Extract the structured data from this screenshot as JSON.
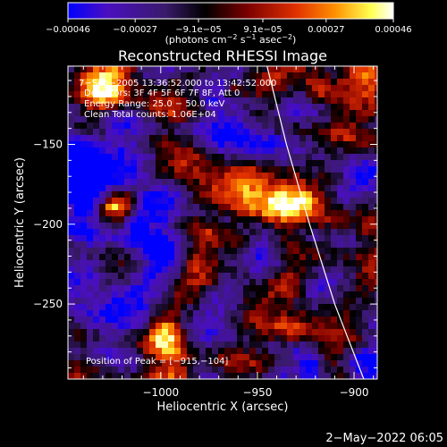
{
  "chart_data": {
    "type": "heatmap",
    "title": "Reconstructed RHESSI Image",
    "xlabel": "Heliocentric X (arcsec)",
    "ylabel": "Heliocentric Y (arcsec)",
    "xlim": [
      -1048,
      -888
    ],
    "ylim": [
      -297,
      -101
    ],
    "xticks": [
      -1000,
      -950,
      -900
    ],
    "xtick_labels": [
      "−1000",
      "−950",
      "−900"
    ],
    "yticks": [
      -150,
      -200,
      -250
    ],
    "ytick_labels": [
      "−150",
      "−200",
      "−250"
    ],
    "colorbar": {
      "range": [
        -0.00046,
        0.00046
      ],
      "ticks": [
        -0.00046,
        -0.00027,
        -9.1e-05,
        9.1e-05,
        0.00027,
        0.00046
      ],
      "tick_labels": [
        "−0.00046",
        "−0.00027",
        "−9.1e−05",
        "9.1e−05",
        "0.00027",
        "0.00046"
      ],
      "unit_prefix": "(photons cm",
      "unit_exp1": "−2",
      "unit_mid": " s",
      "unit_exp2": "−1",
      "unit_suffix": " asec",
      "unit_exp3": "−2",
      "unit_close": ")",
      "colormap": [
        "#0000ff",
        "#4a0fc0",
        "#3a1a6a",
        "#000000",
        "#7a0000",
        "#e03000",
        "#ff9000",
        "#ffff50",
        "#ffffff"
      ]
    },
    "annotations": [
      "7−Sep−2005 13:36:52.000 to 13:42:52.000",
      "Detectors: 3F 4F 5F 6F 7F 8F, Att 0",
      "Energy Range: 25.0 − 50.0 keV",
      "Clean    Total counts: 1.06E+04"
    ],
    "peak_text": "Position of Peak = [−915,−104]",
    "peak": [
      -915,
      -104
    ],
    "limb": [
      [
        -945,
        -101
      ],
      [
        -935,
        -150
      ],
      [
        -923,
        -200
      ],
      [
        -910,
        -250
      ],
      [
        -895,
        -297
      ]
    ],
    "grid": false
  },
  "footer": {
    "date": "2−May−2022 06:05"
  }
}
